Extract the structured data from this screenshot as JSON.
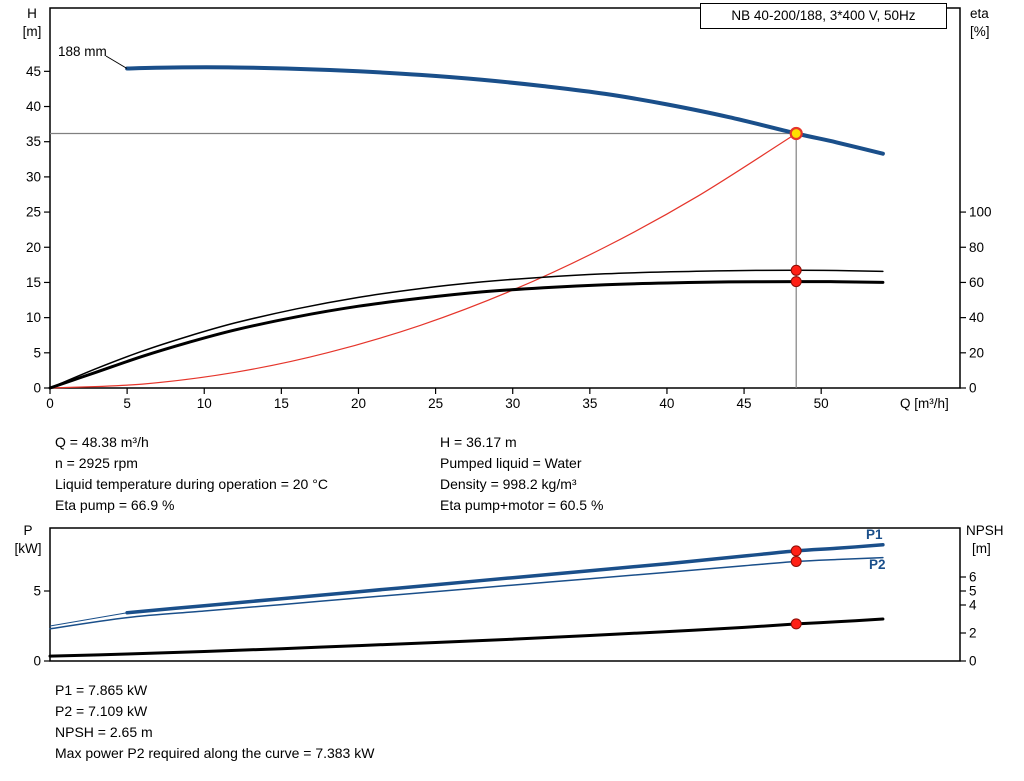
{
  "colors": {
    "curve_blue": "#1a4f8a",
    "curve_red": "#e5352b",
    "dot_red": "#ff2016",
    "duty_yellow": "#ffdf00",
    "crosshair_gray": "#808080"
  },
  "title_box": {
    "label": "NB 40-200/188, 3*400 V, 50Hz"
  },
  "top_chart": {
    "y_left_unit_1": "H",
    "y_left_unit_2": "[m]",
    "y_right_unit_1": "eta",
    "y_right_unit_2": "[%]",
    "x_axis_label": "Q [m³/h]",
    "impeller_label": "188 mm"
  },
  "operating_info": {
    "left": [
      "Q = 48.38 m³/h",
      "n = 2925 rpm",
      "Liquid temperature during operation = 20 °C",
      "Eta pump = 66.9 %"
    ],
    "right": [
      "H = 36.17 m",
      "Pumped liquid = Water",
      "Density = 998.2 kg/m³",
      "Eta pump+motor = 60.5 %"
    ]
  },
  "bottom_chart": {
    "y_left_unit_1": "P",
    "y_left_unit_2": "[kW]",
    "y_right_unit_1": "NPSH",
    "y_right_unit_2": "[m]",
    "p1_label": "P1",
    "p2_label": "P2"
  },
  "power_info": [
    "P1 = 7.865 kW",
    "P2 = 7.109 kW",
    "NPSH = 2.65 m",
    "Max power P2 required along the curve = 7.383 kW"
  ],
  "chart_data": [
    {
      "type": "line",
      "title": "NB 40-200/188, 3*400 V, 50Hz",
      "xlabel": "Q [m³/h]",
      "ylabel_left": "H [m]",
      "ylabel_right": "eta [%]",
      "xlim": [
        0,
        59
      ],
      "ylim_left": [
        0,
        54
      ],
      "ylim_right": [
        0,
        216
      ],
      "right_to_left_scale": 0.25,
      "x_ticks": [
        0,
        5,
        10,
        15,
        20,
        25,
        30,
        35,
        40,
        45,
        50
      ],
      "y_left_ticks": [
        0,
        5,
        10,
        15,
        20,
        25,
        30,
        35,
        40,
        45
      ],
      "y_right_ticks": [
        0,
        20,
        40,
        60,
        80,
        100
      ],
      "grid": false,
      "series": [
        {
          "name": "head-curve-188mm",
          "axis": "left",
          "color": "#1a4f8a",
          "width": 4,
          "x": [
            5,
            8,
            12,
            16,
            20,
            24,
            28,
            32,
            36,
            40,
            44,
            48.38,
            51,
            54
          ],
          "y": [
            45.4,
            45.55,
            45.55,
            45.35,
            45.0,
            44.5,
            43.8,
            42.9,
            41.8,
            40.3,
            38.5,
            36.17,
            34.9,
            33.3
          ]
        },
        {
          "name": "system-curve",
          "axis": "left",
          "color": "#e5352b",
          "width": 1.2,
          "x": [
            0,
            6,
            12,
            18,
            24,
            30,
            36,
            42,
            48.38
          ],
          "y": [
            0,
            0.56,
            2.23,
            5.01,
            8.9,
            13.91,
            20.03,
            27.26,
            36.17
          ]
        },
        {
          "name": "eta-pump-curve",
          "axis": "right",
          "color": "#000000",
          "width": 1.5,
          "x": [
            0,
            3,
            6,
            9,
            12,
            16,
            20,
            24,
            28,
            32,
            36,
            40,
            44,
            48.38,
            51,
            54
          ],
          "y": [
            0,
            11,
            21,
            29.5,
            37,
            45,
            51.5,
            56.5,
            60.3,
            63,
            64.9,
            66,
            66.7,
            66.9,
            66.8,
            66.3
          ]
        },
        {
          "name": "eta-pump-motor-curve",
          "axis": "right",
          "color": "#000000",
          "width": 3,
          "x": [
            0,
            3,
            6,
            9,
            12,
            16,
            20,
            24,
            28,
            32,
            36,
            40,
            44,
            48.38,
            51,
            54
          ],
          "y": [
            0,
            9,
            18,
            26,
            33,
            40.5,
            46.5,
            51,
            54.6,
            57,
            58.7,
            59.7,
            60.3,
            60.5,
            60.4,
            60.0
          ]
        }
      ],
      "duty_point": {
        "q": 48.38,
        "h": 36.17,
        "crosshair": true,
        "dots": [
          {
            "axis": "right",
            "value": 66.9
          },
          {
            "axis": "right",
            "value": 60.5
          }
        ]
      }
    },
    {
      "type": "line",
      "title": "",
      "xlabel": "",
      "ylabel_left": "P [kW]",
      "ylabel_right": "NPSH [m]",
      "xlim": [
        0,
        59
      ],
      "ylim_left": [
        0,
        9.5
      ],
      "ylim_right": [
        0,
        9.5
      ],
      "right_to_left_scale": 1,
      "x_ticks": [],
      "y_left_ticks": [
        0,
        5
      ],
      "y_right_ticks": [
        0,
        2,
        4,
        5,
        6
      ],
      "grid": false,
      "series": [
        {
          "name": "p1-curve",
          "axis": "left",
          "color": "#1a4f8a",
          "width": 3.5,
          "x": [
            5,
            10,
            15,
            20,
            25,
            30,
            35,
            40,
            45,
            48.38,
            51,
            54
          ],
          "y": [
            3.45,
            3.95,
            4.45,
            4.95,
            5.45,
            5.95,
            6.45,
            6.95,
            7.5,
            7.865,
            8.05,
            8.3
          ],
          "lead_x": [
            0,
            5
          ],
          "lead_y": [
            2.5,
            3.45
          ]
        },
        {
          "name": "p2-curve",
          "axis": "left",
          "color": "#1a4f8a",
          "width": 1.5,
          "x": [
            0,
            5,
            10,
            15,
            20,
            25,
            30,
            35,
            40,
            45,
            48.38,
            51,
            54
          ],
          "y": [
            2.3,
            3.1,
            3.57,
            4.03,
            4.5,
            4.96,
            5.42,
            5.88,
            6.33,
            6.8,
            7.109,
            7.25,
            7.383
          ]
        },
        {
          "name": "npsh-curve",
          "axis": "right",
          "color": "#000000",
          "width": 3,
          "x": [
            0,
            5,
            10,
            15,
            20,
            25,
            30,
            35,
            40,
            45,
            48.38,
            51,
            54
          ],
          "y": [
            0.35,
            0.5,
            0.68,
            0.88,
            1.1,
            1.32,
            1.56,
            1.82,
            2.1,
            2.4,
            2.65,
            2.8,
            3.0
          ]
        }
      ],
      "duty_point": {
        "q": 48.38,
        "dots": [
          {
            "axis": "left",
            "value": 7.865
          },
          {
            "axis": "left",
            "value": 7.109
          },
          {
            "axis": "right",
            "value": 2.65
          }
        ]
      }
    }
  ]
}
